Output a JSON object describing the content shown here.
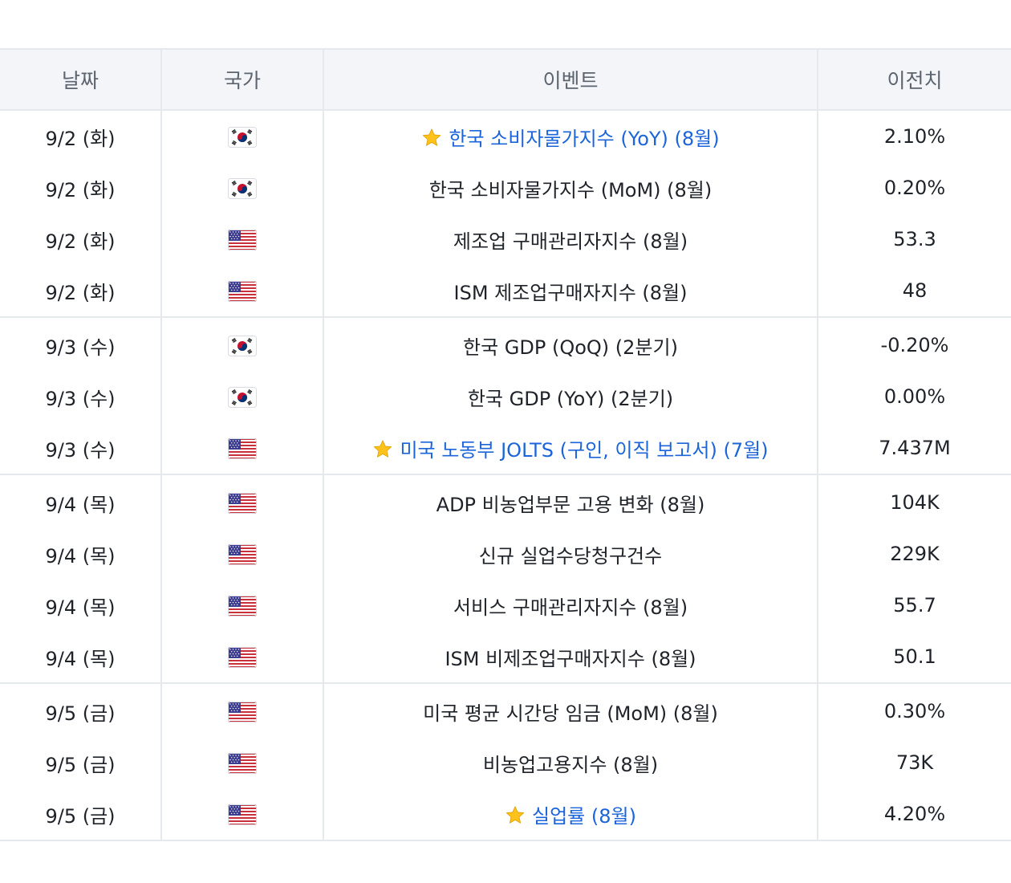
{
  "table": {
    "headers": [
      "날짜",
      "국가",
      "이벤트",
      "이전치"
    ],
    "groups": [
      [
        {
          "date": "9/2 (화)",
          "country": "kr-flag-icon",
          "event": "한국 소비자물가지수 (YoY) (8월)",
          "highlight": true,
          "prev": "2.10%"
        },
        {
          "date": "9/2 (화)",
          "country": "kr-flag-icon",
          "event": "한국 소비자물가지수 (MoM) (8월)",
          "highlight": false,
          "prev": "0.20%"
        },
        {
          "date": "9/2 (화)",
          "country": "us-flag-icon",
          "event": "제조업 구매관리자지수 (8월)",
          "highlight": false,
          "prev": "53.3"
        },
        {
          "date": "9/2 (화)",
          "country": "us-flag-icon",
          "event": "ISM 제조업구매자지수 (8월)",
          "highlight": false,
          "prev": "48"
        }
      ],
      [
        {
          "date": "9/3 (수)",
          "country": "kr-flag-icon",
          "event": "한국 GDP (QoQ) (2분기)",
          "highlight": false,
          "prev": "-0.20%"
        },
        {
          "date": "9/3 (수)",
          "country": "kr-flag-icon",
          "event": "한국 GDP (YoY) (2분기)",
          "highlight": false,
          "prev": "0.00%"
        },
        {
          "date": "9/3 (수)",
          "country": "us-flag-icon",
          "event": "미국 노동부 JOLTS (구인, 이직 보고서) (7월)",
          "highlight": true,
          "prev": "7.437M"
        }
      ],
      [
        {
          "date": "9/4 (목)",
          "country": "us-flag-icon",
          "event": "ADP 비농업부문 고용 변화 (8월)",
          "highlight": false,
          "prev": "104K"
        },
        {
          "date": "9/4 (목)",
          "country": "us-flag-icon",
          "event": "신규 실업수당청구건수",
          "highlight": false,
          "prev": "229K"
        },
        {
          "date": "9/4 (목)",
          "country": "us-flag-icon",
          "event": "서비스 구매관리자지수 (8월)",
          "highlight": false,
          "prev": "55.7"
        },
        {
          "date": "9/4 (목)",
          "country": "us-flag-icon",
          "event": "ISM 비제조업구매자지수 (8월)",
          "highlight": false,
          "prev": "50.1"
        }
      ],
      [
        {
          "date": "9/5 (금)",
          "country": "us-flag-icon",
          "event": "미국 평균 시간당 임금 (MoM) (8월)",
          "highlight": false,
          "prev": "0.30%"
        },
        {
          "date": "9/5 (금)",
          "country": "us-flag-icon",
          "event": "비농업고용지수 (8월)",
          "highlight": false,
          "prev": "73K"
        },
        {
          "date": "9/5 (금)",
          "country": "us-flag-icon",
          "event": "실업률 (8월)",
          "highlight": true,
          "prev": "4.20%"
        }
      ]
    ]
  },
  "colors": {
    "highlight_text": "#1b64da",
    "header_bg": "#f3f5f8",
    "divider": "#e5e8ec",
    "star": "#ffc21a"
  }
}
